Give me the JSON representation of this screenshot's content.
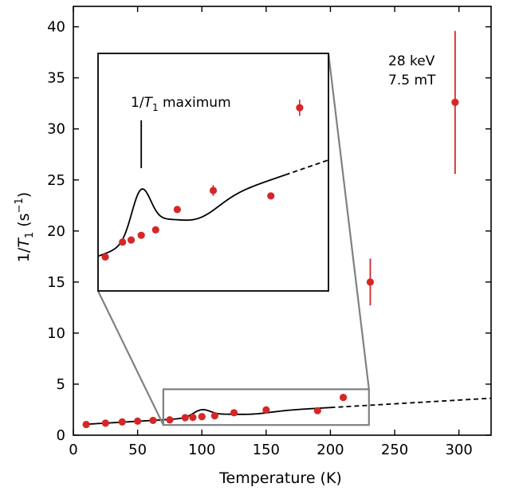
{
  "chart_data": {
    "type": "scatter",
    "xlabel": "Temperature (K)",
    "ylabel": {
      "main": "1/",
      "italic": "T",
      "sub": "1",
      "unit_open": " (s",
      "sup": "−1",
      "unit_close": ")"
    },
    "xlim": [
      0,
      325
    ],
    "ylim": [
      0,
      42
    ],
    "xticks": [
      0,
      50,
      100,
      150,
      200,
      250,
      300
    ],
    "yticks": [
      0,
      5,
      10,
      15,
      20,
      25,
      30,
      35,
      40
    ],
    "annotation": {
      "line1": "28 keV",
      "line2": "7.5 mT"
    },
    "marker_color": "#d62728",
    "points": [
      {
        "x": 10,
        "y": 1.05,
        "err": 0.0
      },
      {
        "x": 25,
        "y": 1.18,
        "err": 0.0
      },
      {
        "x": 38,
        "y": 1.3,
        "err": 0.0
      },
      {
        "x": 50,
        "y": 1.38,
        "err": 0.0
      },
      {
        "x": 62,
        "y": 1.45,
        "err": 0.0
      },
      {
        "x": 75,
        "y": 1.5,
        "err": 0.0
      },
      {
        "x": 87,
        "y": 1.72,
        "err": 0.0
      },
      {
        "x": 93,
        "y": 1.75,
        "err": 0.0
      },
      {
        "x": 100,
        "y": 1.82,
        "err": 0.0
      },
      {
        "x": 110,
        "y": 1.9,
        "err": 0.0
      },
      {
        "x": 125,
        "y": 2.2,
        "err": 0.0
      },
      {
        "x": 150,
        "y": 2.48,
        "err": 0.0
      },
      {
        "x": 190,
        "y": 2.4,
        "err": 0.0
      },
      {
        "x": 210,
        "y": 3.7,
        "err": 0.0
      },
      {
        "x": 231,
        "y": 15.0,
        "err": 2.3
      },
      {
        "x": 297,
        "y": 32.6,
        "err": 7.0
      }
    ],
    "inset": {
      "label": "1/T₁ maximum",
      "label_main": "1/",
      "label_italic": "T",
      "label_sub": "1",
      "label_rest": " maximum",
      "xlim": [
        70,
        230
      ],
      "ylim": [
        1.0,
        4.5
      ],
      "zoom_box_color": "#808080"
    }
  }
}
